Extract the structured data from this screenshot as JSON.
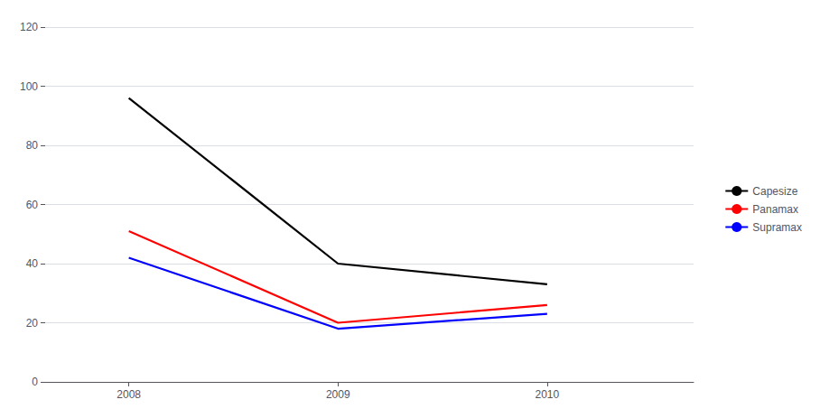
{
  "chart_data": {
    "type": "line",
    "x": [
      2008,
      2009,
      2010
    ],
    "series": [
      {
        "name": "Capesize",
        "color": "#000000",
        "values": [
          96,
          40,
          33
        ]
      },
      {
        "name": "Panamax",
        "color": "#ff0000",
        "values": [
          51,
          20,
          26
        ]
      },
      {
        "name": "Supramax",
        "color": "#0000ff",
        "values": [
          42,
          18,
          23
        ]
      }
    ],
    "xlim": [
      2007.6,
      2010.7
    ],
    "xticks": [
      2008,
      2009,
      2010
    ],
    "ylim": [
      0,
      120
    ],
    "yticks": [
      0,
      20,
      40,
      60,
      80,
      100,
      120
    ],
    "grid": true,
    "legend": "right"
  }
}
